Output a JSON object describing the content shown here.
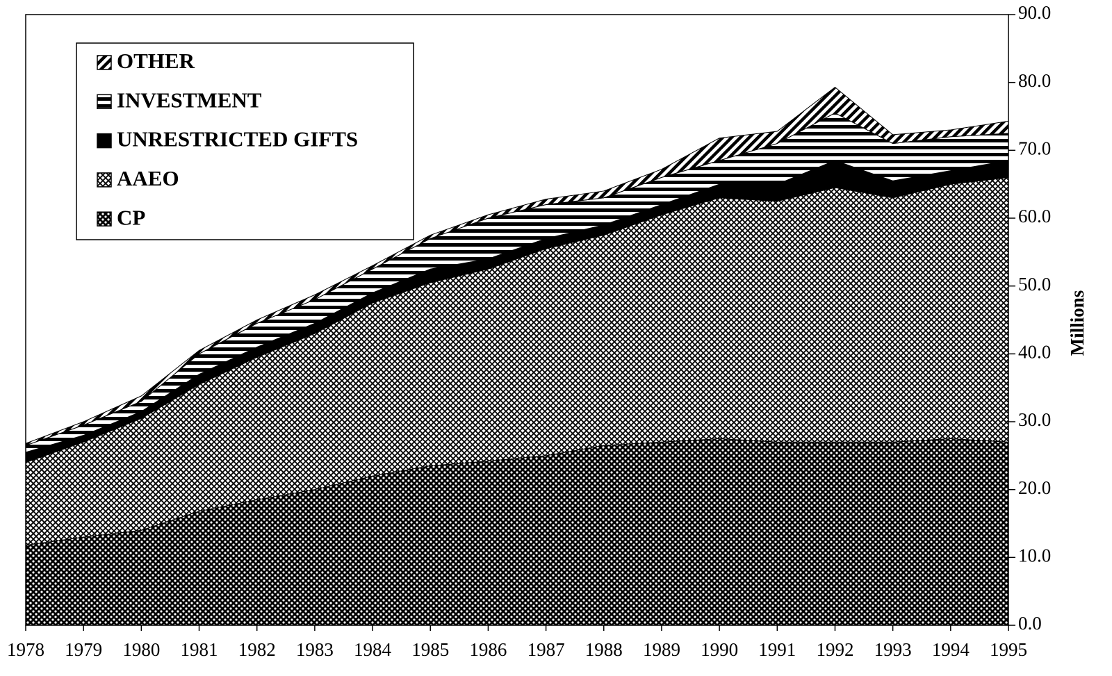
{
  "chart_data": {
    "type": "stacked_area",
    "y_label": "Millions",
    "categories": [
      "1978",
      "1979",
      "1980",
      "1981",
      "1982",
      "1983",
      "1984",
      "1985",
      "1986",
      "1987",
      "1988",
      "1989",
      "1990",
      "1991",
      "1992",
      "1993",
      "1994",
      "1995"
    ],
    "series": [
      {
        "name": "CP",
        "color": "#000000",
        "pattern": "dots",
        "values": [
          11.8,
          13,
          14,
          16.8,
          18.5,
          20,
          22,
          23.5,
          24.2,
          25,
          26.5,
          27,
          27.5,
          27,
          27,
          27,
          27.5,
          27
        ]
      },
      {
        "name": "AAEO",
        "color": "#000000",
        "pattern": "crosshatch",
        "values": [
          12.2,
          14,
          16.5,
          18.7,
          21,
          23,
          25.5,
          27,
          28.3,
          30.5,
          31,
          33.5,
          35.5,
          35.5,
          37.5,
          36,
          37.5,
          39
        ]
      },
      {
        "name": "UNRESTRICTED GIFTS",
        "color": "#000000",
        "pattern": "solid",
        "values": [
          1.5,
          1,
          1,
          1.5,
          1.5,
          1.5,
          1.5,
          2,
          1.5,
          1.5,
          1.5,
          1.5,
          2,
          2.5,
          4,
          2.5,
          2,
          2.5
        ]
      },
      {
        "name": "INVESTMENT",
        "color": "#000000",
        "pattern": "horizontal",
        "values": [
          1,
          1.5,
          1.5,
          3,
          3.5,
          3.5,
          3.5,
          4.5,
          6,
          5,
          4,
          4,
          3.5,
          6,
          7,
          5.5,
          5,
          4
        ]
      },
      {
        "name": "OTHER",
        "color": "#000000",
        "pattern": "diagonal",
        "values": [
          0.3,
          0.5,
          0.8,
          0.5,
          0.5,
          0.7,
          0.5,
          0.5,
          0.5,
          0.8,
          1,
          1.2,
          3.3,
          1.8,
          3.8,
          1.3,
          1,
          1.8
        ]
      }
    ],
    "ylim": [
      0,
      90
    ],
    "yticks": [
      {
        "value": 0,
        "label": "0.0"
      },
      {
        "value": 10,
        "label": "10.0"
      },
      {
        "value": 20,
        "label": "20.0"
      },
      {
        "value": 30,
        "label": "30.0"
      },
      {
        "value": 40,
        "label": "40.0"
      },
      {
        "value": 50,
        "label": "50.0"
      },
      {
        "value": 60,
        "label": "60.0"
      },
      {
        "value": 70,
        "label": "70.0"
      },
      {
        "value": 80,
        "label": "80.0"
      },
      {
        "value": 90,
        "label": "90.0"
      }
    ],
    "y_axis_side": "right",
    "legend": "top-left",
    "legend_order": "reverse"
  }
}
